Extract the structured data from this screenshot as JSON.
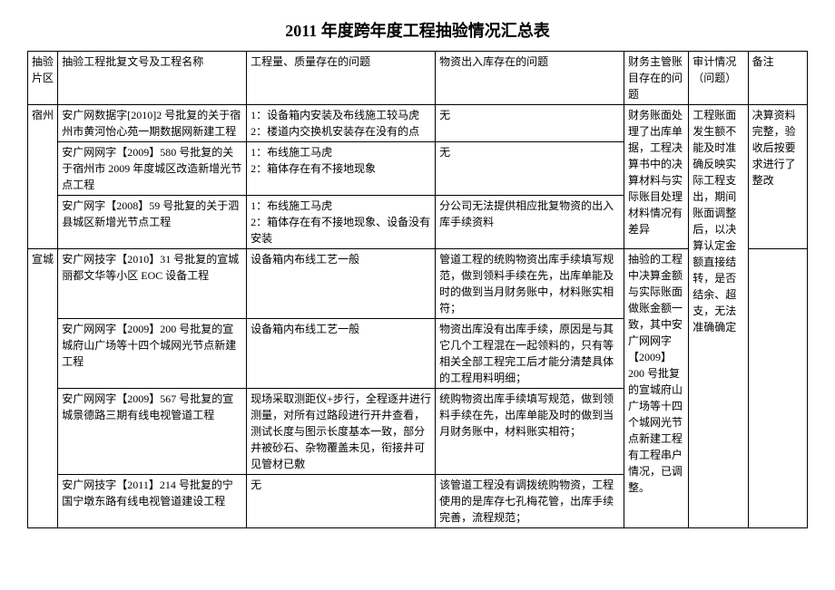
{
  "title": "2011 年度跨年度工程抽验情况汇总表",
  "headers": {
    "region": "抽验片区",
    "name": "抽验工程批复文号及工程名称",
    "quality": "工程量、质量存在的问题",
    "material": "物资出入库存在的问题",
    "finance": "财务主管账目存在的问题",
    "audit": "审计情况（问题）",
    "note": "备注"
  },
  "regions": [
    {
      "region": "宿州",
      "finance": "财务账面处理了出库单据，工程决算书中的决算材料与实际账目处理材料情况有差异",
      "audit": "工程账面发生额不能及时准确反映实际工程支出，期间账面调整后，以决算认定金额直接结转，是否结余、超支，无法准确确定",
      "note": "决算资料完整，验收后按要求进行了整改",
      "rows": [
        {
          "name": "安广网数据字[2010]2 号批复的关于宿州市黄河怡心苑一期数据网新建工程",
          "quality": "1：设备箱内安装及布线施工较马虎\n2：楼道内交换机安装存在没有的点",
          "material": "无"
        },
        {
          "name": "安广网网字【2009】580 号批复的关于宿州市 2009 年度城区改造新增光节点工程",
          "quality": "1：布线施工马虎\n2：箱体存在有不接地现象",
          "material": "无"
        },
        {
          "name": "安广网字【2008】59 号批复的关于泗县城区新增光节点工程",
          "quality": "1：布线施工马虎\n2：箱体存在有不接地现象、设备没有安装",
          "material": "分公司无法提供相应批复物资的出入库手续资料"
        }
      ]
    },
    {
      "region": "宣城",
      "finance": "抽验的工程中决算金额与实际账面做账金额一致，其中安广网网字【2009】200 号批复的宣城府山广场等十四个城网光节点新建工程有工程串户情况，已调整。",
      "audit_continues": true,
      "rows": [
        {
          "name": "安广网技字【2010】31 号批复的宣城丽都文华等小区 EOC 设备工程",
          "quality": "设备箱内布线工艺一般",
          "material": "管道工程的统购物资出库手续填写规范，做到领料手续在先，出库单能及时的做到当月财务账中，材料账实相符；"
        },
        {
          "name": "安广网网字【2009】200 号批复的宣城府山广场等十四个城网光节点新建工程",
          "quality": "设备箱内布线工艺一般",
          "material": "物资出库没有出库手续，原因是与其它几个工程混在一起领料的，只有等相关全部工程完工后才能分清楚具体的工程用料明细；"
        },
        {
          "name": "安广网网字【2009】567 号批复的宣城景德路三期有线电视管道工程",
          "quality": "现场采取测距仪+步行，全程逐井进行测量，对所有过路段进行开井查看，测试长度与图示长度基本一致，部分井被砂石、杂物覆盖未见，衔接井可见管材已敷",
          "material": "统购物资出库手续填写规范，做到领料手续在先，出库单能及时的做到当月财务账中，材料账实相符；"
        },
        {
          "name": "安广网技字【2011】214 号批复的宁国宁墩东路有线电视管道建设工程",
          "quality": "无",
          "material": "该管道工程没有调拨统购物资，工程使用的是库存七孔梅花管，出库手续完善，流程规范；"
        }
      ]
    }
  ]
}
